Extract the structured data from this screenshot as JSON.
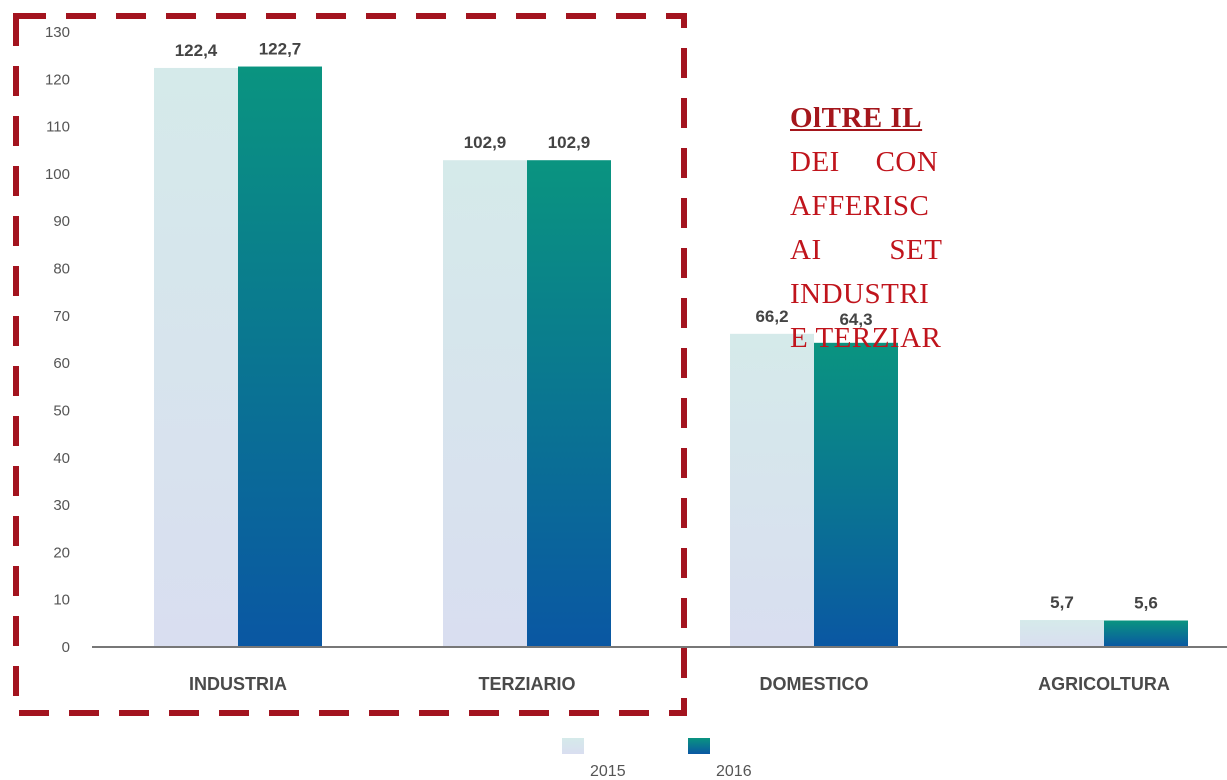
{
  "chart_data": {
    "type": "bar",
    "categories": [
      "INDUSTRIA",
      "TERZIARIO",
      "DOMESTICO",
      "AGRICOLTURA"
    ],
    "series": [
      {
        "name": "2015",
        "values": [
          122.4,
          102.9,
          66.2,
          5.7
        ],
        "labels": [
          "122,4",
          "102,9",
          "66,2",
          "5,7"
        ]
      },
      {
        "name": "2016",
        "values": [
          122.7,
          102.9,
          64.3,
          5.6
        ],
        "labels": [
          "122,7",
          "102,9",
          "64,3",
          "5,6"
        ]
      }
    ],
    "ylim": [
      0,
      130
    ],
    "yticks": [
      0,
      10,
      20,
      30,
      40,
      50,
      60,
      70,
      80,
      90,
      100,
      110,
      120,
      130
    ],
    "grid": false,
    "legend": "bottom-center",
    "highlight": {
      "categories": [
        "INDUSTRIA",
        "TERZIARIO"
      ],
      "style": "dashed-box"
    },
    "title": "",
    "xlabel": "",
    "ylabel": ""
  },
  "colors": {
    "series_2015_top": "#d5eaea",
    "series_2015_bottom": "#d9def0",
    "series_2016_top": "#0a9480",
    "series_2016_bottom": "#0a57a3",
    "highlight_box": "#a3141f",
    "axis": "#777777"
  },
  "callout": {
    "headline": "OlTRE IL",
    "lines": [
      "DEI CON",
      "AFFERISC",
      "AI SET",
      "INDUSTRI",
      "E TERZIAR"
    ]
  }
}
